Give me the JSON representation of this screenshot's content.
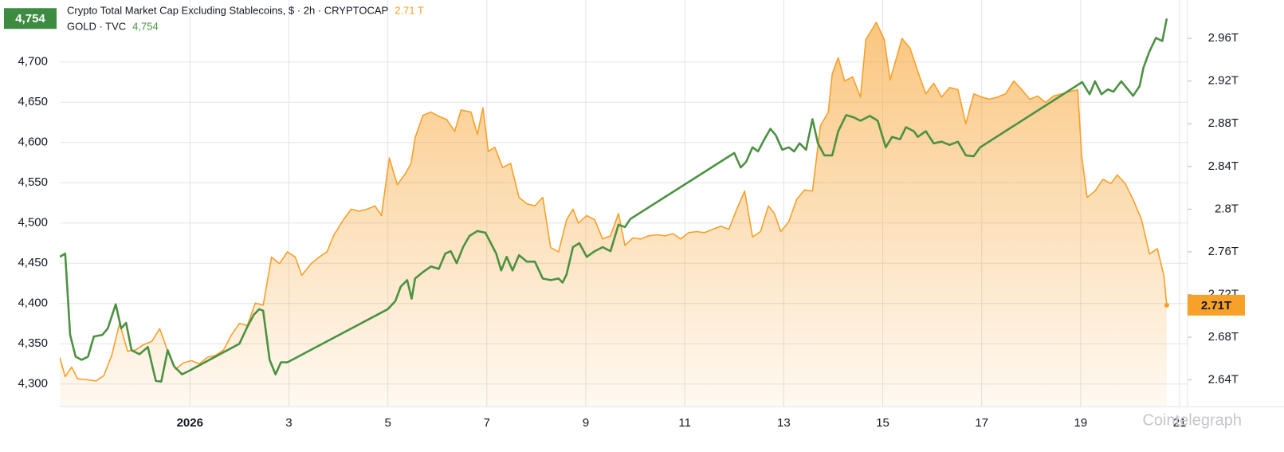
{
  "chart_data": {
    "type": "line",
    "series": [
      {
        "name": "Crypto Total Market Cap Excluding Stablecoins, $ · 2h · CRYPTOCAP",
        "color": "#f7a02a",
        "axis": "y2",
        "area": true,
        "legend_value": "2.71 T",
        "badge_label": "2.71T",
        "x": [
          -1.63,
          -1.52,
          -1.39,
          -1.27,
          -1.06,
          -0.9,
          -0.74,
          -0.58,
          -0.42,
          -0.26,
          -0.1,
          0.06,
          0.23,
          0.39,
          0.55,
          0.71,
          0.87,
          1.03,
          1.19,
          1.35,
          1.52,
          1.68,
          1.84,
          2.0,
          2.16,
          2.32,
          2.48,
          2.65,
          2.81,
          2.97,
          3.13,
          3.26,
          3.45,
          3.61,
          3.77,
          3.9,
          4.1,
          4.26,
          4.42,
          4.58,
          4.74,
          4.87,
          5.03,
          5.19,
          5.35,
          5.47,
          5.55,
          5.71,
          5.87,
          6.03,
          6.19,
          6.35,
          6.48,
          6.68,
          6.81,
          6.92,
          7.03,
          7.16,
          7.32,
          7.48,
          7.65,
          7.81,
          7.97,
          8.13,
          8.29,
          8.45,
          8.61,
          8.74,
          8.85,
          9.02,
          9.18,
          9.34,
          9.5,
          9.66,
          9.79,
          9.95,
          10.11,
          10.27,
          10.44,
          10.6,
          10.76,
          10.92,
          11.08,
          11.24,
          11.4,
          11.56,
          11.73,
          11.89,
          12.05,
          12.21,
          12.37,
          12.53,
          12.69,
          12.81,
          12.94,
          13.1,
          13.26,
          13.42,
          13.58,
          13.74,
          13.9,
          13.98,
          14.1,
          14.23,
          14.39,
          14.55,
          14.66,
          14.87,
          15.03,
          15.15,
          15.31,
          15.39,
          15.55,
          15.71,
          15.87,
          16.03,
          16.19,
          16.35,
          16.52,
          16.68,
          16.84,
          17.0,
          17.16,
          17.32,
          17.48,
          17.65,
          17.81,
          17.97,
          18.13,
          18.29,
          18.45,
          18.61,
          18.77,
          18.94,
          19.02,
          19.13,
          19.29,
          19.45,
          19.61,
          19.74,
          19.9,
          20.06,
          20.23,
          20.39,
          20.55,
          20.68,
          20.74
        ],
        "values": [
          2.661,
          2.643,
          2.652,
          2.641,
          2.64,
          2.639,
          2.644,
          2.663,
          2.693,
          2.667,
          2.668,
          2.673,
          2.676,
          2.688,
          2.667,
          2.65,
          2.656,
          2.658,
          2.655,
          2.661,
          2.663,
          2.668,
          2.682,
          2.693,
          2.691,
          2.712,
          2.71,
          2.755,
          2.749,
          2.76,
          2.755,
          2.738,
          2.749,
          2.755,
          2.76,
          2.775,
          2.79,
          2.8,
          2.798,
          2.8,
          2.803,
          2.794,
          2.848,
          2.823,
          2.833,
          2.843,
          2.867,
          2.888,
          2.891,
          2.887,
          2.884,
          2.873,
          2.893,
          2.891,
          2.87,
          2.895,
          2.854,
          2.858,
          2.839,
          2.843,
          2.811,
          2.805,
          2.803,
          2.811,
          2.764,
          2.76,
          2.79,
          2.8,
          2.787,
          2.794,
          2.79,
          2.772,
          2.775,
          2.796,
          2.766,
          2.773,
          2.772,
          2.775,
          2.776,
          2.775,
          2.777,
          2.772,
          2.778,
          2.779,
          2.778,
          2.781,
          2.784,
          2.781,
          2.8,
          2.817,
          2.774,
          2.779,
          2.803,
          2.796,
          2.779,
          2.788,
          2.809,
          2.818,
          2.817,
          2.878,
          2.891,
          2.927,
          2.942,
          2.92,
          2.924,
          2.905,
          2.959,
          2.975,
          2.959,
          2.921,
          2.947,
          2.96,
          2.951,
          2.929,
          2.908,
          2.918,
          2.905,
          2.914,
          2.912,
          2.88,
          2.908,
          2.905,
          2.903,
          2.905,
          2.908,
          2.92,
          2.912,
          2.903,
          2.906,
          2.9,
          2.906,
          2.908,
          2.91,
          2.912,
          2.85,
          2.811,
          2.817,
          2.828,
          2.824,
          2.832,
          2.824,
          2.809,
          2.79,
          2.758,
          2.763,
          2.738,
          2.71
        ]
      },
      {
        "name": "GOLD · TVC",
        "color": "#4c9142",
        "axis": "y",
        "legend_value": "4,754",
        "badge_label": "4,754",
        "x": [
          -1.63,
          -1.52,
          -1.42,
          -1.31,
          -1.19,
          -1.06,
          -0.94,
          -0.77,
          -0.66,
          -0.5,
          -0.39,
          -0.29,
          -0.18,
          -0.02,
          0.15,
          0.31,
          0.42,
          0.55,
          0.68,
          0.84,
          1.0,
          2.0,
          2.16,
          2.29,
          2.4,
          2.48,
          2.61,
          2.73,
          2.84,
          2.97,
          5.0,
          5.15,
          5.26,
          5.39,
          5.48,
          5.55,
          5.71,
          5.87,
          6.03,
          6.16,
          6.27,
          6.39,
          6.52,
          6.65,
          6.81,
          6.97,
          7.08,
          7.19,
          7.29,
          7.4,
          7.52,
          7.65,
          7.81,
          7.97,
          8.13,
          8.29,
          8.45,
          8.53,
          8.61,
          8.74,
          8.87,
          9.02,
          9.18,
          9.34,
          9.5,
          9.66,
          9.79,
          9.9,
          12.0,
          12.13,
          12.24,
          12.37,
          12.48,
          12.61,
          12.73,
          12.84,
          12.97,
          13.1,
          13.21,
          13.32,
          13.45,
          13.58,
          13.69,
          13.82,
          13.98,
          14.1,
          14.26,
          14.42,
          14.55,
          14.74,
          14.9,
          15.06,
          15.19,
          15.35,
          15.47,
          15.63,
          15.71,
          15.87,
          16.03,
          16.19,
          16.35,
          16.52,
          16.68,
          16.84,
          16.97,
          19.03,
          19.18,
          19.29,
          19.42,
          19.55,
          19.66,
          19.82,
          20.06,
          20.19,
          20.27,
          20.39,
          20.52,
          20.65,
          20.74
        ],
        "values": [
          4458,
          4462,
          4361,
          4334,
          4330,
          4334,
          4359,
          4361,
          4369,
          4399,
          4369,
          4376,
          4342,
          4337,
          4346,
          4304,
          4303,
          4342,
          4322,
          4312,
          4317,
          4350,
          4371,
          4386,
          4393,
          4391,
          4330,
          4312,
          4327,
          4327,
          4393,
          4403,
          4421,
          4429,
          4406,
          4431,
          4439,
          4446,
          4443,
          4462,
          4465,
          4450,
          4470,
          4484,
          4490,
          4488,
          4475,
          4462,
          4441,
          4458,
          4441,
          4460,
          4452,
          4452,
          4431,
          4429,
          4431,
          4426,
          4436,
          4470,
          4475,
          4458,
          4465,
          4470,
          4465,
          4498,
          4495,
          4505,
          4587,
          4569,
          4576,
          4594,
          4589,
          4604,
          4617,
          4609,
          4591,
          4594,
          4589,
          4599,
          4591,
          4629,
          4599,
          4584,
          4584,
          4614,
          4634,
          4631,
          4627,
          4633,
          4627,
          4594,
          4607,
          4604,
          4619,
          4614,
          4607,
          4614,
          4599,
          4601,
          4597,
          4601,
          4584,
          4583,
          4594,
          4675,
          4660,
          4676,
          4660,
          4666,
          4663,
          4676,
          4658,
          4670,
          4693,
          4713,
          4730,
          4726,
          4754
        ]
      }
    ],
    "xlim": [
      -1.63,
      21.16
    ],
    "xticks": [
      {
        "value": 1,
        "label": "2026"
      },
      3,
      5,
      7,
      9,
      11,
      13,
      15,
      17,
      19,
      21
    ],
    "ylim": [
      4272,
      4777
    ],
    "yticks": [
      {
        "value": 4300,
        "label": "4,300"
      },
      {
        "value": 4350,
        "label": "4,350"
      },
      {
        "value": 4400,
        "label": "4,400"
      },
      {
        "value": 4450,
        "label": "4,450"
      },
      {
        "value": 4500,
        "label": "4,500"
      },
      {
        "value": 4550,
        "label": "4,550"
      },
      {
        "value": 4600,
        "label": "4,600"
      },
      {
        "value": 4650,
        "label": "4,650"
      },
      {
        "value": 4700,
        "label": "4,700"
      }
    ],
    "y2lim": [
      2.615,
      2.996
    ],
    "y2ticks": [
      {
        "value": 2.64,
        "label": "2.64T"
      },
      {
        "value": 2.68,
        "label": "2.68T"
      },
      {
        "value": 2.72,
        "label": "2.72T"
      },
      {
        "value": 2.76,
        "label": "2.76T"
      },
      {
        "value": 2.8,
        "label": "2.8T"
      },
      {
        "value": 2.84,
        "label": "2.84T"
      },
      {
        "value": 2.88,
        "label": "2.88T"
      },
      {
        "value": 2.92,
        "label": "2.92T"
      },
      {
        "value": 2.96,
        "label": "2.96T"
      }
    ],
    "grid": true,
    "watermark": "Cointelegraph"
  }
}
